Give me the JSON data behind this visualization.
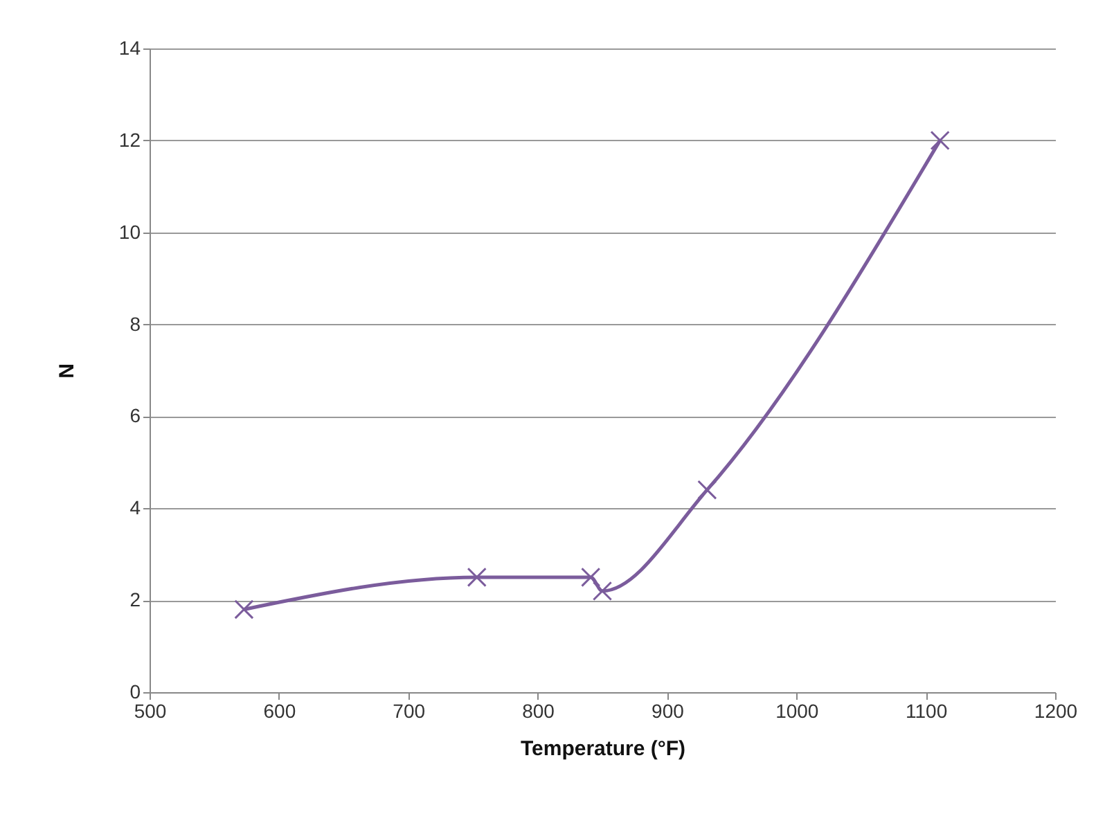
{
  "chart_data": {
    "type": "line",
    "xlabel": "Temperature (°F)",
    "ylabel": "N",
    "x": [
      573,
      753,
      841,
      850,
      931,
      1111
    ],
    "series": [
      {
        "color": "#7b5c9c",
        "values": [
          1.8,
          2.5,
          2.5,
          2.2,
          4.4,
          12
        ]
      }
    ],
    "xlim": [
      500,
      1200
    ],
    "xticks": [
      500,
      600,
      700,
      800,
      900,
      1000,
      1100,
      1200
    ],
    "ylim": [
      0,
      14
    ],
    "yticks": [
      0,
      2,
      4,
      6,
      8,
      10,
      12,
      14
    ],
    "grid": "y",
    "marker": "cross",
    "line_style": "solid"
  }
}
